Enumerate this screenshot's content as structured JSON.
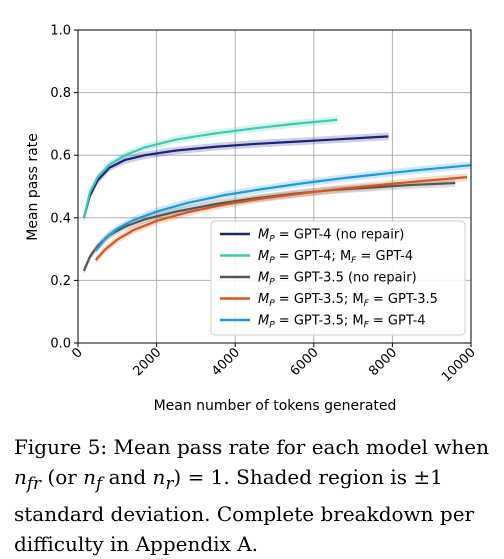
{
  "chart_data": {
    "type": "line",
    "xlabel": "Mean number of tokens generated",
    "ylabel": "Mean pass rate",
    "xlim": [
      0,
      10000
    ],
    "ylim": [
      0,
      1.0
    ],
    "x_ticks": [
      "0",
      "2000",
      "4000",
      "6000",
      "8000",
      "10000"
    ],
    "y_ticks": [
      "0.0",
      "0.2",
      "0.4",
      "0.6",
      "0.8",
      "1.0"
    ],
    "grid": true,
    "legend_position": "lower-right",
    "series": [
      {
        "name": "M_P = GPT-4 (no repair)",
        "legend": {
          "pre": "M",
          "pre_sub": "P",
          "mid": " = GPT-4 (no repair)",
          "f_sub": "",
          "post": ""
        },
        "color": "#1a237e",
        "x": [
          150,
          300,
          500,
          800,
          1200,
          1700,
          2500,
          3500,
          4500,
          5500,
          6500,
          7200,
          7900
        ],
        "y": [
          0.4,
          0.47,
          0.52,
          0.56,
          0.585,
          0.6,
          0.615,
          0.627,
          0.636,
          0.643,
          0.65,
          0.655,
          0.66
        ]
      },
      {
        "name": "M_P = GPT-4; M_F = GPT-4",
        "legend": {
          "pre": "M",
          "pre_sub": "P",
          "mid": " = GPT-4; M",
          "f_sub": "F",
          "post": " = GPT-4"
        },
        "color": "#3ec9b0",
        "x": [
          150,
          300,
          500,
          800,
          1200,
          1700,
          2500,
          3500,
          4500,
          5500,
          6600
        ],
        "y": [
          0.4,
          0.48,
          0.53,
          0.57,
          0.6,
          0.625,
          0.65,
          0.67,
          0.686,
          0.7,
          0.713
        ]
      },
      {
        "name": "M_P = GPT-3.5 (no repair)",
        "legend": {
          "pre": "M",
          "pre_sub": "P",
          "mid": " = GPT-3.5 (no repair)",
          "f_sub": "",
          "post": ""
        },
        "color": "#555555",
        "x": [
          150,
          300,
          500,
          800,
          1200,
          1700,
          2500,
          3500,
          4500,
          5500,
          6500,
          7500,
          8500,
          9600
        ],
        "y": [
          0.23,
          0.275,
          0.31,
          0.345,
          0.372,
          0.395,
          0.42,
          0.444,
          0.462,
          0.477,
          0.489,
          0.497,
          0.505,
          0.511
        ]
      },
      {
        "name": "M_P = GPT-3.5; M_F = GPT-3.5",
        "legend": {
          "pre": "M",
          "pre_sub": "P",
          "mid": " = GPT-3.5; M",
          "f_sub": "F",
          "post": " = GPT-3.5"
        },
        "color": "#d2581e",
        "x": [
          450,
          700,
          1000,
          1400,
          2000,
          2800,
          3700,
          4700,
          5700,
          6700,
          7700,
          8700,
          9900
        ],
        "y": [
          0.265,
          0.3,
          0.33,
          0.36,
          0.39,
          0.418,
          0.442,
          0.462,
          0.478,
          0.493,
          0.505,
          0.517,
          0.53
        ]
      },
      {
        "name": "M_P = GPT-3.5; M_F = GPT-4",
        "legend": {
          "pre": "M",
          "pre_sub": "P",
          "mid": " = GPT-3.5; M",
          "f_sub": "F",
          "post": " = GPT-4"
        },
        "color": "#1e9ad6",
        "x": [
          450,
          700,
          1000,
          1400,
          2000,
          2800,
          3700,
          4700,
          5700,
          6700,
          7700,
          8700,
          10000
        ],
        "y": [
          0.295,
          0.335,
          0.365,
          0.392,
          0.42,
          0.448,
          0.472,
          0.492,
          0.51,
          0.526,
          0.54,
          0.553,
          0.568
        ]
      }
    ]
  },
  "caption": {
    "l1": "Figure 5: Mean pass rate for each model when",
    "l2_a": "n",
    "l2_a_sub": "fr",
    "l2_b": " (or ",
    "l2_c": "n",
    "l2_c_sub": "f",
    "l2_d": " and ",
    "l2_e": "n",
    "l2_e_sub": "r",
    "l2_f": ") = 1.  Shaded region is ±1",
    "l3": "standard deviation.  Complete breakdown per",
    "l4": "difficulty in Appendix A."
  }
}
